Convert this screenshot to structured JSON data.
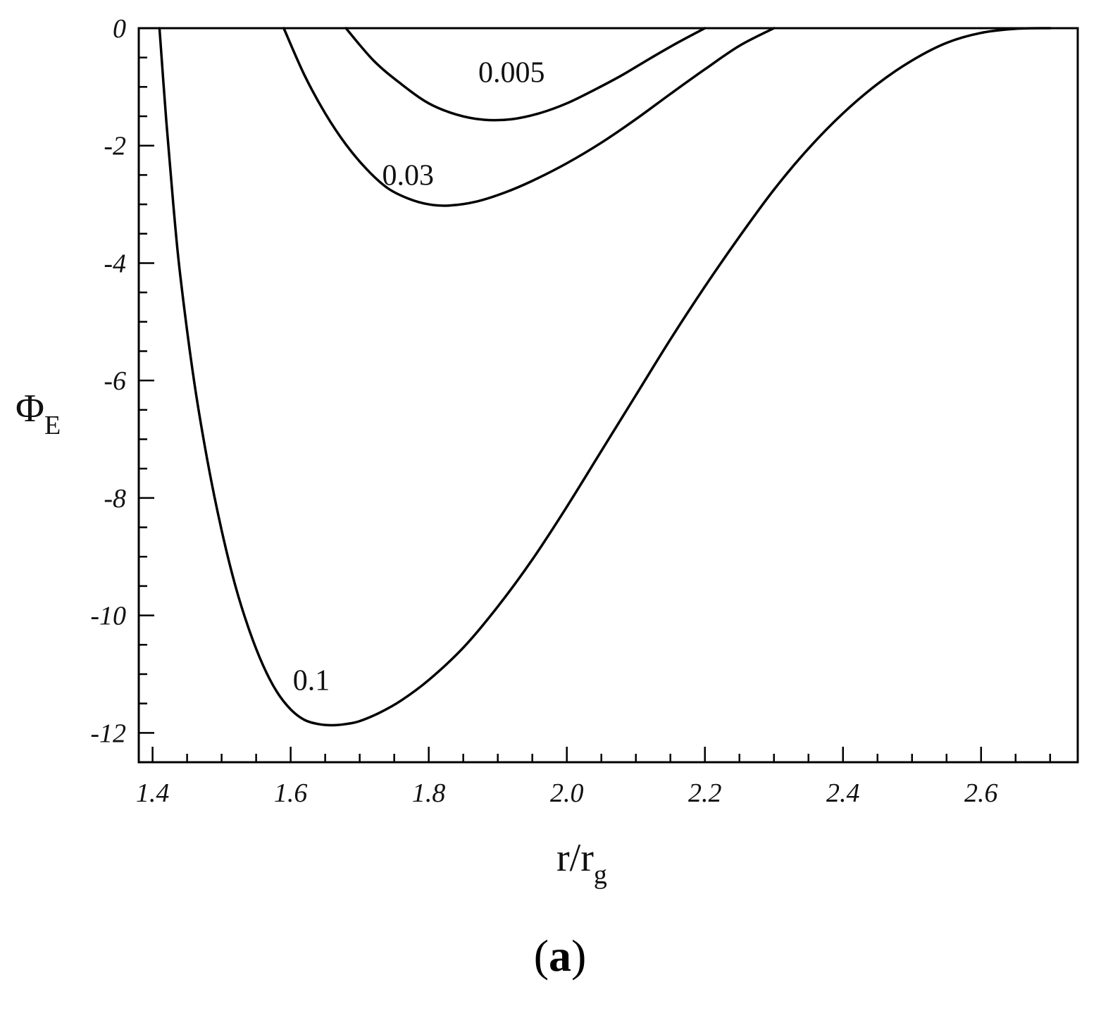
{
  "chart_data": {
    "type": "line",
    "xlabel_main": "r/r",
    "xlabel_sub": "g",
    "ylabel_main": "Φ",
    "ylabel_sub": "E",
    "xlim": [
      1.38,
      2.74
    ],
    "ylim": [
      -12.5,
      0
    ],
    "xticks": [
      1.4,
      1.6,
      1.8,
      2.0,
      2.2,
      2.4,
      2.6
    ],
    "xtick_labels": [
      "1.4",
      "1.6",
      "1.8",
      "2.0",
      "2.2",
      "2.4",
      "2.6"
    ],
    "yticks": [
      0,
      -2,
      -4,
      -6,
      -8,
      -10,
      -12
    ],
    "ytick_labels": [
      "0",
      "-2",
      "-4",
      "-6",
      "-8",
      "-10",
      "-12"
    ],
    "x_minor_step": 0.05,
    "y_minor_step": 0.5,
    "grid": false,
    "series": [
      {
        "name": "0.005",
        "label_at": [
          1.92,
          -0.75
        ],
        "x": [
          1.68,
          1.72,
          1.76,
          1.8,
          1.84,
          1.88,
          1.92,
          1.96,
          2.0,
          2.04,
          2.08,
          2.12,
          2.16,
          2.2
        ],
        "y": [
          0,
          -0.55,
          -0.95,
          -1.28,
          -1.47,
          -1.56,
          -1.55,
          -1.45,
          -1.28,
          -1.05,
          -0.8,
          -0.52,
          -0.25,
          0
        ]
      },
      {
        "name": "0.03",
        "label_at": [
          1.77,
          -2.5
        ],
        "x": [
          1.59,
          1.62,
          1.65,
          1.68,
          1.71,
          1.74,
          1.77,
          1.8,
          1.83,
          1.87,
          1.91,
          1.95,
          2.0,
          2.05,
          2.1,
          2.15,
          2.2,
          2.25,
          2.3
        ],
        "y": [
          0,
          -0.8,
          -1.45,
          -1.98,
          -2.4,
          -2.72,
          -2.9,
          -3.0,
          -3.02,
          -2.95,
          -2.8,
          -2.6,
          -2.3,
          -1.95,
          -1.55,
          -1.12,
          -0.7,
          -0.3,
          0
        ]
      },
      {
        "name": "0.1",
        "label_at": [
          1.63,
          -11.1
        ],
        "x": [
          1.41,
          1.42,
          1.43,
          1.44,
          1.46,
          1.48,
          1.5,
          1.52,
          1.54,
          1.56,
          1.58,
          1.6,
          1.62,
          1.64,
          1.66,
          1.68,
          1.7,
          1.73,
          1.76,
          1.8,
          1.85,
          1.9,
          1.95,
          2.0,
          2.05,
          2.1,
          2.15,
          2.2,
          2.25,
          2.3,
          2.35,
          2.4,
          2.45,
          2.5,
          2.55,
          2.6,
          2.65,
          2.7
        ],
        "y": [
          0,
          -1.6,
          -3.0,
          -4.2,
          -6.0,
          -7.4,
          -8.55,
          -9.5,
          -10.25,
          -10.85,
          -11.3,
          -11.6,
          -11.78,
          -11.85,
          -11.87,
          -11.85,
          -11.8,
          -11.65,
          -11.45,
          -11.1,
          -10.55,
          -9.85,
          -9.05,
          -8.15,
          -7.2,
          -6.25,
          -5.3,
          -4.4,
          -3.55,
          -2.75,
          -2.05,
          -1.45,
          -0.95,
          -0.55,
          -0.25,
          -0.08,
          -0.01,
          0
        ]
      }
    ]
  },
  "panel": {
    "label_open": "(",
    "label_letter": "a",
    "label_close": ")"
  }
}
